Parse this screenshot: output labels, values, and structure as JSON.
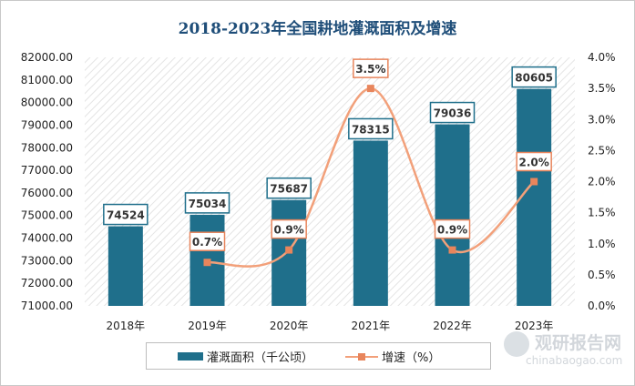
{
  "title": "2018-2023年全国耕地灌溉面积及增速",
  "chart_data": {
    "type": "bar",
    "categories": [
      "2018年",
      "2019年",
      "2020年",
      "2021年",
      "2022年",
      "2023年"
    ],
    "series": [
      {
        "name": "灌溉面积（千公顷）",
        "type": "bar",
        "axis": "left",
        "values": [
          74524,
          75034,
          75687,
          78315,
          79036,
          80605
        ],
        "labels": [
          "74524",
          "75034",
          "75687",
          "78315",
          "79036",
          "80605"
        ],
        "color": "#1f6f8b"
      },
      {
        "name": "增速（%）",
        "type": "line",
        "axis": "right",
        "values": [
          null,
          0.7,
          0.9,
          3.5,
          0.9,
          2.0
        ],
        "labels": [
          "",
          "0.7%",
          "0.9%",
          "3.5%",
          "0.9%",
          "2.0%"
        ],
        "color": "#f2a07a",
        "marker_color": "#e8855c"
      }
    ],
    "y_left": {
      "min": 71000,
      "max": 82000,
      "ticks": [
        "71000.00",
        "72000.00",
        "73000.00",
        "74000.00",
        "75000.00",
        "76000.00",
        "77000.00",
        "78000.00",
        "79000.00",
        "80000.00",
        "81000.00",
        "82000.00"
      ]
    },
    "y_right": {
      "min": 0,
      "max": 4.0,
      "ticks": [
        "0.0%",
        "0.5%",
        "1.0%",
        "1.5%",
        "2.0%",
        "2.5%",
        "3.0%",
        "3.5%",
        "4.0%"
      ]
    },
    "grid": false,
    "legend_position": "bottom"
  },
  "watermark": {
    "main": "观研报告网",
    "sub": "chinabaogao.com"
  }
}
